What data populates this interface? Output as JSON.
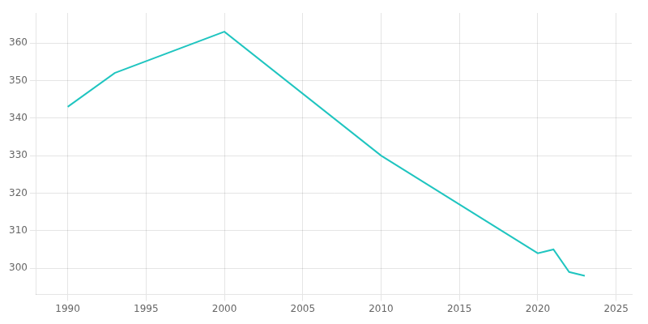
{
  "chart_data": {
    "type": "line",
    "x": [
      1990,
      1993,
      2000,
      2010,
      2020,
      2021,
      2022,
      2023
    ],
    "values": [
      343,
      352,
      363,
      330,
      304,
      305,
      299,
      298
    ],
    "color": "#20c5c0",
    "marker": "none",
    "xlim": [
      1988,
      2026
    ],
    "ylim": [
      293,
      368
    ],
    "xticks": [
      1990,
      1995,
      2000,
      2005,
      2010,
      2015,
      2020,
      2025
    ],
    "yticks": [
      300,
      310,
      320,
      330,
      340,
      350,
      360
    ],
    "grid": true
  }
}
